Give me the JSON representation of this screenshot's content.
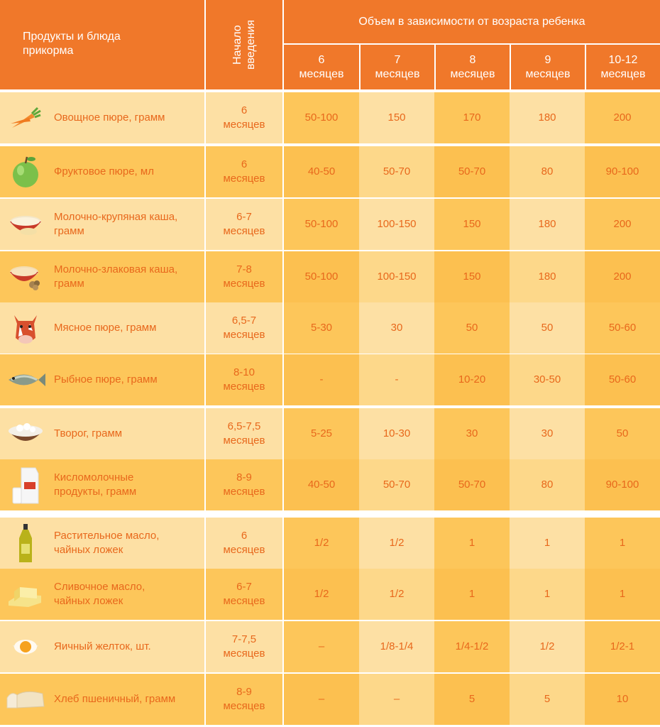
{
  "header": {
    "products_title": "Продукты и блюда\nприкорма",
    "start_title": "Начало\nвведения",
    "volume_title": "Объем в зависимости от возраста ребенка",
    "ages": [
      "6\nмесяцев",
      "7\nмесяцев",
      "8\nмесяцев",
      "9\nмесяцев",
      "10-12\nмесяцев"
    ]
  },
  "colors": {
    "header": "#f0782a",
    "light_cell": "#fde0a4",
    "dark_cell": "#fdc65a",
    "accent_text": "#e8681c"
  },
  "rows": [
    {
      "icon": "carrot-icon",
      "name": "Овощное пюре, грамм",
      "start": "6\nмесяцев",
      "values": [
        "50-100",
        "150",
        "170",
        "180",
        "200"
      ]
    },
    {
      "icon": "apple-icon",
      "name": "Фруктовое пюре, мл",
      "start": "6\nмесяцев",
      "values": [
        "40-50",
        "50-70",
        "50-70",
        "80",
        "90-100"
      ]
    },
    {
      "icon": "porridge-bowl-icon",
      "name": "Молочно-крупяная каша,\nграмм",
      "start": "6-7\nмесяцев",
      "values": [
        "50-100",
        "100-150",
        "150",
        "180",
        "200"
      ]
    },
    {
      "icon": "cereal-bowl-icon",
      "name": "Молочно-злаковая каша,\nграмм",
      "start": "7-8\nмесяцев",
      "values": [
        "50-100",
        "100-150",
        "150",
        "180",
        "200"
      ]
    },
    {
      "icon": "cow-icon",
      "name": "Мясное пюре, грамм",
      "start": "6,5-7\nмесяцев",
      "values": [
        "5-30",
        "30",
        "50",
        "50",
        "50-60"
      ]
    },
    {
      "icon": "fish-icon",
      "name": "Рыбное пюре, грамм",
      "start": "8-10\nмесяцев",
      "values": [
        "-",
        "-",
        "10-20",
        "30-50",
        "50-60"
      ]
    },
    {
      "icon": "cottage-cheese-icon",
      "name": "Творог, грамм",
      "start": "6,5-7,5\nмесяцев",
      "values": [
        "5-25",
        "10-30",
        "30",
        "30",
        "50"
      ]
    },
    {
      "icon": "milk-carton-icon",
      "name": "Кисломолочные\nпродукты, грамм",
      "start": "8-9\nмесяцев",
      "values": [
        "40-50",
        "50-70",
        "50-70",
        "80",
        "90-100"
      ]
    },
    {
      "icon": "oil-bottle-icon",
      "name": "Растительное масло,\nчайных ложек",
      "start": "6\nмесяцев",
      "values": [
        "1/2",
        "1/2",
        "1",
        "1",
        "1"
      ]
    },
    {
      "icon": "butter-icon",
      "name": "Сливочное масло,\nчайных ложек",
      "start": "6-7\nмесяцев",
      "values": [
        "1/2",
        "1/2",
        "1",
        "1",
        "1"
      ]
    },
    {
      "icon": "egg-yolk-icon",
      "name": "Яичный желток, шт.",
      "start": "7-7,5\nмесяцев",
      "values": [
        "–",
        "1/8-1/4",
        "1/4-1/2",
        "1/2",
        "1/2-1"
      ]
    },
    {
      "icon": "bread-icon",
      "name": "Хлеб пшеничный, грамм",
      "start": "8-9\nмесяцев",
      "values": [
        "–",
        "–",
        "5",
        "5",
        "10"
      ]
    }
  ]
}
